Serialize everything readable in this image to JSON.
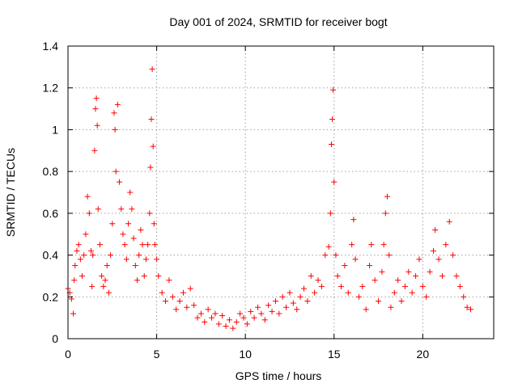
{
  "chart_data": {
    "type": "scatter",
    "title": "Day 001 of 2024, SRMTID for receiver bogt",
    "xlabel": "GPS time / hours",
    "ylabel": "SRMTID / TECUs",
    "xlim": [
      0,
      24
    ],
    "ylim": [
      0,
      1.4
    ],
    "xticks": [
      0,
      5,
      10,
      15,
      20
    ],
    "xtick_labels": [
      "0",
      "5",
      "10",
      "15",
      "20"
    ],
    "yticks": [
      0,
      0.2,
      0.4,
      0.6,
      0.8,
      1.0,
      1.2,
      1.4
    ],
    "ytick_labels": [
      "0",
      "0.2",
      "0.4",
      "0.6",
      "0.8",
      "1",
      "1.2",
      "1.4"
    ],
    "grid": true,
    "marker": "+",
    "series": [
      {
        "name": "SRMTID",
        "color": "#ff0000",
        "points": [
          [
            0.0,
            0.24
          ],
          [
            0.1,
            0.22
          ],
          [
            0.2,
            0.19
          ],
          [
            0.3,
            0.12
          ],
          [
            0.35,
            0.28
          ],
          [
            0.4,
            0.35
          ],
          [
            0.5,
            0.42
          ],
          [
            0.6,
            0.45
          ],
          [
            0.7,
            0.38
          ],
          [
            0.8,
            0.3
          ],
          [
            0.9,
            0.4
          ],
          [
            1.0,
            0.5
          ],
          [
            1.1,
            0.68
          ],
          [
            1.2,
            0.6
          ],
          [
            1.3,
            0.42
          ],
          [
            1.35,
            0.25
          ],
          [
            1.4,
            0.4
          ],
          [
            1.5,
            0.9
          ],
          [
            1.55,
            1.1
          ],
          [
            1.6,
            1.15
          ],
          [
            1.65,
            1.02
          ],
          [
            1.7,
            0.62
          ],
          [
            1.8,
            0.45
          ],
          [
            1.9,
            0.3
          ],
          [
            2.0,
            0.25
          ],
          [
            2.1,
            0.28
          ],
          [
            2.2,
            0.35
          ],
          [
            2.3,
            0.22
          ],
          [
            2.4,
            0.4
          ],
          [
            2.5,
            0.55
          ],
          [
            2.6,
            1.08
          ],
          [
            2.65,
            1.0
          ],
          [
            2.7,
            0.8
          ],
          [
            2.8,
            1.12
          ],
          [
            2.9,
            0.75
          ],
          [
            3.0,
            0.62
          ],
          [
            3.1,
            0.5
          ],
          [
            3.2,
            0.45
          ],
          [
            3.3,
            0.38
          ],
          [
            3.4,
            0.55
          ],
          [
            3.5,
            0.7
          ],
          [
            3.6,
            0.62
          ],
          [
            3.7,
            0.48
          ],
          [
            3.8,
            0.35
          ],
          [
            3.9,
            0.28
          ],
          [
            4.0,
            0.4
          ],
          [
            4.1,
            0.52
          ],
          [
            4.2,
            0.45
          ],
          [
            4.3,
            0.3
          ],
          [
            4.4,
            0.38
          ],
          [
            4.5,
            0.45
          ],
          [
            4.6,
            0.6
          ],
          [
            4.65,
            0.82
          ],
          [
            4.7,
            1.05
          ],
          [
            4.75,
            1.29
          ],
          [
            4.8,
            0.92
          ],
          [
            4.85,
            0.55
          ],
          [
            4.9,
            0.45
          ],
          [
            5.0,
            0.38
          ],
          [
            5.1,
            0.3
          ],
          [
            5.3,
            0.22
          ],
          [
            5.5,
            0.18
          ],
          [
            5.7,
            0.28
          ],
          [
            5.9,
            0.2
          ],
          [
            6.1,
            0.14
          ],
          [
            6.3,
            0.18
          ],
          [
            6.5,
            0.22
          ],
          [
            6.7,
            0.15
          ],
          [
            6.9,
            0.24
          ],
          [
            7.1,
            0.16
          ],
          [
            7.3,
            0.1
          ],
          [
            7.5,
            0.12
          ],
          [
            7.7,
            0.08
          ],
          [
            7.9,
            0.14
          ],
          [
            8.1,
            0.1
          ],
          [
            8.3,
            0.12
          ],
          [
            8.5,
            0.07
          ],
          [
            8.7,
            0.11
          ],
          [
            8.9,
            0.06
          ],
          [
            9.1,
            0.09
          ],
          [
            9.3,
            0.05
          ],
          [
            9.5,
            0.08
          ],
          [
            9.7,
            0.12
          ],
          [
            9.9,
            0.1
          ],
          [
            10.1,
            0.07
          ],
          [
            10.3,
            0.13
          ],
          [
            10.5,
            0.1
          ],
          [
            10.7,
            0.15
          ],
          [
            10.9,
            0.12
          ],
          [
            11.1,
            0.09
          ],
          [
            11.3,
            0.16
          ],
          [
            11.5,
            0.13
          ],
          [
            11.7,
            0.18
          ],
          [
            11.9,
            0.12
          ],
          [
            12.1,
            0.2
          ],
          [
            12.3,
            0.15
          ],
          [
            12.5,
            0.22
          ],
          [
            12.7,
            0.17
          ],
          [
            12.9,
            0.14
          ],
          [
            13.1,
            0.2
          ],
          [
            13.3,
            0.24
          ],
          [
            13.5,
            0.18
          ],
          [
            13.7,
            0.3
          ],
          [
            13.9,
            0.22
          ],
          [
            14.1,
            0.28
          ],
          [
            14.3,
            0.25
          ],
          [
            14.5,
            0.4
          ],
          [
            14.7,
            0.44
          ],
          [
            14.8,
            0.6
          ],
          [
            14.85,
            0.93
          ],
          [
            14.9,
            1.05
          ],
          [
            14.95,
            1.19
          ],
          [
            15.0,
            0.75
          ],
          [
            15.1,
            0.4
          ],
          [
            15.2,
            0.3
          ],
          [
            15.4,
            0.25
          ],
          [
            15.6,
            0.35
          ],
          [
            15.8,
            0.22
          ],
          [
            16.0,
            0.45
          ],
          [
            16.1,
            0.57
          ],
          [
            16.2,
            0.38
          ],
          [
            16.4,
            0.2
          ],
          [
            16.6,
            0.25
          ],
          [
            16.8,
            0.14
          ],
          [
            17.0,
            0.35
          ],
          [
            17.1,
            0.45
          ],
          [
            17.3,
            0.28
          ],
          [
            17.5,
            0.18
          ],
          [
            17.7,
            0.32
          ],
          [
            17.8,
            0.45
          ],
          [
            17.9,
            0.6
          ],
          [
            18.0,
            0.68
          ],
          [
            18.1,
            0.4
          ],
          [
            18.2,
            0.15
          ],
          [
            18.4,
            0.22
          ],
          [
            18.6,
            0.28
          ],
          [
            18.8,
            0.18
          ],
          [
            19.0,
            0.25
          ],
          [
            19.2,
            0.32
          ],
          [
            19.4,
            0.22
          ],
          [
            19.6,
            0.3
          ],
          [
            19.8,
            0.38
          ],
          [
            20.0,
            0.25
          ],
          [
            20.2,
            0.2
          ],
          [
            20.4,
            0.32
          ],
          [
            20.6,
            0.42
          ],
          [
            20.7,
            0.52
          ],
          [
            20.9,
            0.38
          ],
          [
            21.1,
            0.3
          ],
          [
            21.3,
            0.45
          ],
          [
            21.5,
            0.56
          ],
          [
            21.7,
            0.4
          ],
          [
            21.9,
            0.3
          ],
          [
            22.1,
            0.25
          ],
          [
            22.3,
            0.2
          ],
          [
            22.5,
            0.15
          ],
          [
            22.7,
            0.14
          ]
        ]
      }
    ]
  }
}
